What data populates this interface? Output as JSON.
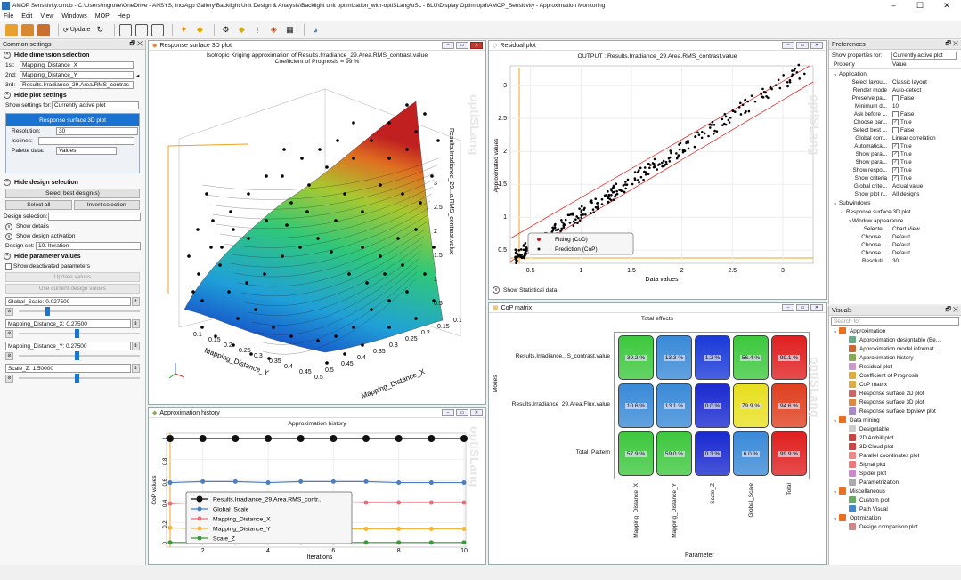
{
  "title": "AMOP Sensitivity.omdb - C:\\Users\\mgrove\\OneDrive - ANSYS, Inc\\App Gallery\\Backlight Unit Design & Analysis\\Backlight unit optimization_with-optiSLang\\oSL - BLU\\Display Optim.opd\\AMOP_Sensitivity - Approximation Monitoring",
  "menu": [
    "File",
    "Edit",
    "View",
    "Windows",
    "MOP",
    "Help"
  ],
  "toolbar": {
    "update_label": "Update"
  },
  "left": {
    "header": "Common settings",
    "dim_section": "Hide dimension selection",
    "dims": [
      {
        "label": "1st:",
        "value": "Mapping_Distance_X"
      },
      {
        "label": "2nd:",
        "value": "Mapping_Distance_Y"
      },
      {
        "label": "3rd:",
        "value": "Results.Irradiance_29.Area.RMS_contras"
      }
    ],
    "plot_section": "Hide plot settings",
    "show_settings_label": "Show settings for:",
    "show_settings_value": "Currently active plot",
    "active_plot": "Response surface 3D plot",
    "resolution_label": "Resolution:",
    "resolution_value": "30",
    "isolines_label": "Isolines:",
    "palette_label": "Palette data:",
    "palette_value": "Values",
    "design_section": "Hide design selection",
    "select_best": "Select best design(s)",
    "select_all": "Select all",
    "invert": "Invert selection",
    "design_sel_label": "Design selection:",
    "show_details": "Show details",
    "show_activation": "Show design activation",
    "design_set_label": "Design set:",
    "design_set_value": "10. Iteration",
    "param_section": "Hide parameter values",
    "show_deactivated": "Show deactivated parameters",
    "update_values": "Update values",
    "use_current": "Use current design values",
    "params": [
      {
        "label": "Global_Scale: 0.027500",
        "frac": 0.22
      },
      {
        "label": "Mapping_Distance_X: 0.27500",
        "frac": 0.46
      },
      {
        "label": "Mapping_Distance_Y: 0.27500",
        "frac": 0.46
      },
      {
        "label": "Scale_Z: 1.50000",
        "frac": 0.46
      }
    ]
  },
  "rs3d": {
    "window_title": "Response surface 3D plot",
    "title": "Isotropic Kriging  approximation of Results.Irradiance_29.Area.RMS_contrast.value",
    "subtitle": "Coefficient of Prognosis = 99 %",
    "zlabel": "Results.Irradiance_29...a.RMS_contrast.value",
    "xlabel": "Mapping_Distance_X",
    "ylabel": "Mapping_Distance_Y",
    "zticks": [
      "3",
      "2.5",
      "2",
      "1.5",
      "1",
      "0.5"
    ],
    "xticks": [
      "0.5",
      "0.45",
      "0.4",
      "0.35",
      "0.3",
      "0.25",
      "0.2",
      "0.15",
      "0.1"
    ],
    "yticks": [
      "0.1",
      "0.15",
      "0.2",
      "0.25",
      "0.3",
      "0.35",
      "0.4",
      "0.45",
      "0.5"
    ]
  },
  "residual": {
    "window_title": "Residual plot",
    "title": "OUTPUT : Results.Irradiance_29.Area.RMS_contrast.value",
    "xlabel": "Data values",
    "ylabel": "Approximated values",
    "legend": [
      "Fitting (CoD)",
      "Prediction (CoP)"
    ],
    "show_stats": "Show Statistical data",
    "xticks": [
      "0.5",
      "1",
      "1.5",
      "2",
      "2.5",
      "3"
    ],
    "yticks": [
      "0.5",
      "1",
      "1.5",
      "2",
      "2.5",
      "3"
    ]
  },
  "history": {
    "window_title": "Approximation history",
    "title": "Approximation history",
    "xlabel": "Iterations",
    "ylabel": "CoP values",
    "xticks": [
      "2",
      "4",
      "6",
      "8",
      "10"
    ],
    "yticks": [
      "0",
      "0.2",
      "0.4",
      "0.6",
      "0.8",
      "1"
    ],
    "series": [
      {
        "name": "Results.Irradiance_29.Area.RMS_contr...",
        "color": "#111111",
        "values": [
          1,
          1,
          1,
          1,
          1,
          1,
          1,
          1,
          1,
          1
        ]
      },
      {
        "name": "Global_Scale",
        "color": "#4a7fc4",
        "values": [
          0.58,
          0.59,
          0.59,
          0.58,
          0.59,
          0.59,
          0.59,
          0.58,
          0.58,
          0.58
        ]
      },
      {
        "name": "Mapping_Distance_X",
        "color": "#e8707a",
        "values": [
          0.38,
          0.39,
          0.39,
          0.38,
          0.37,
          0.38,
          0.39,
          0.39,
          0.39,
          0.39
        ]
      },
      {
        "name": "Mapping_Distance_Y",
        "color": "#f2b63c",
        "values": [
          0.15,
          0.14,
          0.14,
          0.14,
          0.14,
          0.14,
          0.14,
          0.14,
          0.14,
          0.14
        ]
      },
      {
        "name": "Scale_Z",
        "color": "#3a9a3a",
        "values": [
          0.01,
          0.01,
          0.01,
          0.01,
          0.01,
          0.01,
          0.01,
          0.01,
          0.01,
          0.01
        ]
      }
    ]
  },
  "cop": {
    "window_title": "CoP matrix",
    "title": "Total effects",
    "xlabel": "Parameter",
    "ylabel": "Modes",
    "rows": [
      "Results.Irradiance...S_contrast.value",
      "Results.Irradiance_29.Area.Flux.value",
      "Total_Pattern"
    ],
    "cols": [
      "Mapping_Distance_X",
      "Mapping_Distance_Y",
      "Scale_Z",
      "Global_Scale",
      "Total"
    ],
    "cells": [
      [
        "39.2 %",
        "13.3 %",
        "1.2 %",
        "56.4 %",
        "99.1 %"
      ],
      [
        "10.6 %",
        "13.1 %",
        "0.0 %",
        "79.9 %",
        "94.6 %"
      ],
      [
        "57.9 %",
        "59.0 %",
        "0.3 %",
        "6.0 %",
        "99.9 %"
      ]
    ],
    "colors": [
      [
        "#3ec83e",
        "#3a8ad8",
        "#1a3ad8",
        "#3ec83e",
        "#e02020"
      ],
      [
        "#3a8ad8",
        "#3a8ad8",
        "#1a2ad0",
        "#e8e020",
        "#e04020"
      ],
      [
        "#3ec83e",
        "#3ec83e",
        "#1a2ad0",
        "#3a8ad8",
        "#e02020"
      ]
    ]
  },
  "prefs": {
    "header": "Preferences",
    "show_for_label": "Show properties for:",
    "show_for_value": "Currently active plot",
    "col_property": "Property",
    "col_value": "Value",
    "group1": "Application",
    "items": [
      {
        "k": "Select layou...",
        "v": "Classic layout"
      },
      {
        "k": "Render mode",
        "v": "Auto-detect"
      },
      {
        "k": "Preserve pa...",
        "v": "False",
        "cb": " "
      },
      {
        "k": "Minimum d...",
        "v": "10"
      },
      {
        "k": "Ask before ...",
        "v": "False",
        "cb": " "
      },
      {
        "k": "Choose par...",
        "v": "True",
        "cb": "✓"
      },
      {
        "k": "Select best ...",
        "v": "False",
        "cb": " "
      },
      {
        "k": "Global corr...",
        "v": "Linear correlation"
      },
      {
        "k": "Automatica...",
        "v": "True",
        "cb": "✓"
      },
      {
        "k": "Show para...",
        "v": "True",
        "cb": "✓"
      },
      {
        "k": "Show para...",
        "v": "True",
        "cb": "✓"
      },
      {
        "k": "Show respo...",
        "v": "True",
        "cb": "✓"
      },
      {
        "k": "Show criteria",
        "v": "True",
        "cb": "✓"
      },
      {
        "k": "Global crite...",
        "v": "Actual value"
      },
      {
        "k": "Show plot r...",
        "v": "All designs"
      }
    ],
    "group2": "Subwindows",
    "sub1": "Response surface 3D plot",
    "sub2": "Window appearance",
    "items2": [
      {
        "k": "Selecte...",
        "v": "Chart View"
      },
      {
        "k": "Choose ...",
        "v": "Default"
      },
      {
        "k": "Choose ...",
        "v": "Default"
      },
      {
        "k": "Choose ...",
        "v": "Default"
      },
      {
        "k": "Resoluti...",
        "v": "30"
      }
    ]
  },
  "visuals": {
    "header": "Visuals",
    "search": "Search for",
    "groups": [
      {
        "name": "Approximation",
        "items": [
          {
            "n": "Approximation designtable (Be...",
            "c": "#6a8"
          },
          {
            "n": "Approximation model informat...",
            "c": "#c63"
          },
          {
            "n": "Approximation history",
            "c": "#8a5"
          },
          {
            "n": "Residual plot",
            "c": "#c9c"
          },
          {
            "n": "Coefficient of Prognosis",
            "c": "#da4"
          },
          {
            "n": "CoP matrix",
            "c": "#da4"
          },
          {
            "n": "Response surface 2D plot",
            "c": "#c66"
          },
          {
            "n": "Response surface 3D plot",
            "c": "#d84"
          },
          {
            "n": "Response surface topview plot",
            "c": "#a8c"
          }
        ]
      },
      {
        "name": "Data mining",
        "items": [
          {
            "n": "Designtable",
            "c": "#ccc"
          },
          {
            "n": "2D Anthill plot",
            "c": "#c44"
          },
          {
            "n": "3D Cloud plot",
            "c": "#c44"
          },
          {
            "n": "Parallel coordinates plot",
            "c": "#e88"
          },
          {
            "n": "Signal plot",
            "c": "#e77"
          },
          {
            "n": "Spider plot",
            "c": "#c8c"
          },
          {
            "n": "Parametrization",
            "c": "#aaa"
          }
        ]
      },
      {
        "name": "Miscellaneous",
        "items": [
          {
            "n": "Custom plot",
            "c": "#6a6"
          },
          {
            "n": "Path Visual",
            "c": "#48c"
          }
        ]
      },
      {
        "name": "Optimization",
        "items": [
          {
            "n": "Design comparison plot",
            "c": "#c88"
          }
        ]
      }
    ]
  },
  "watermark": "optiSLang"
}
